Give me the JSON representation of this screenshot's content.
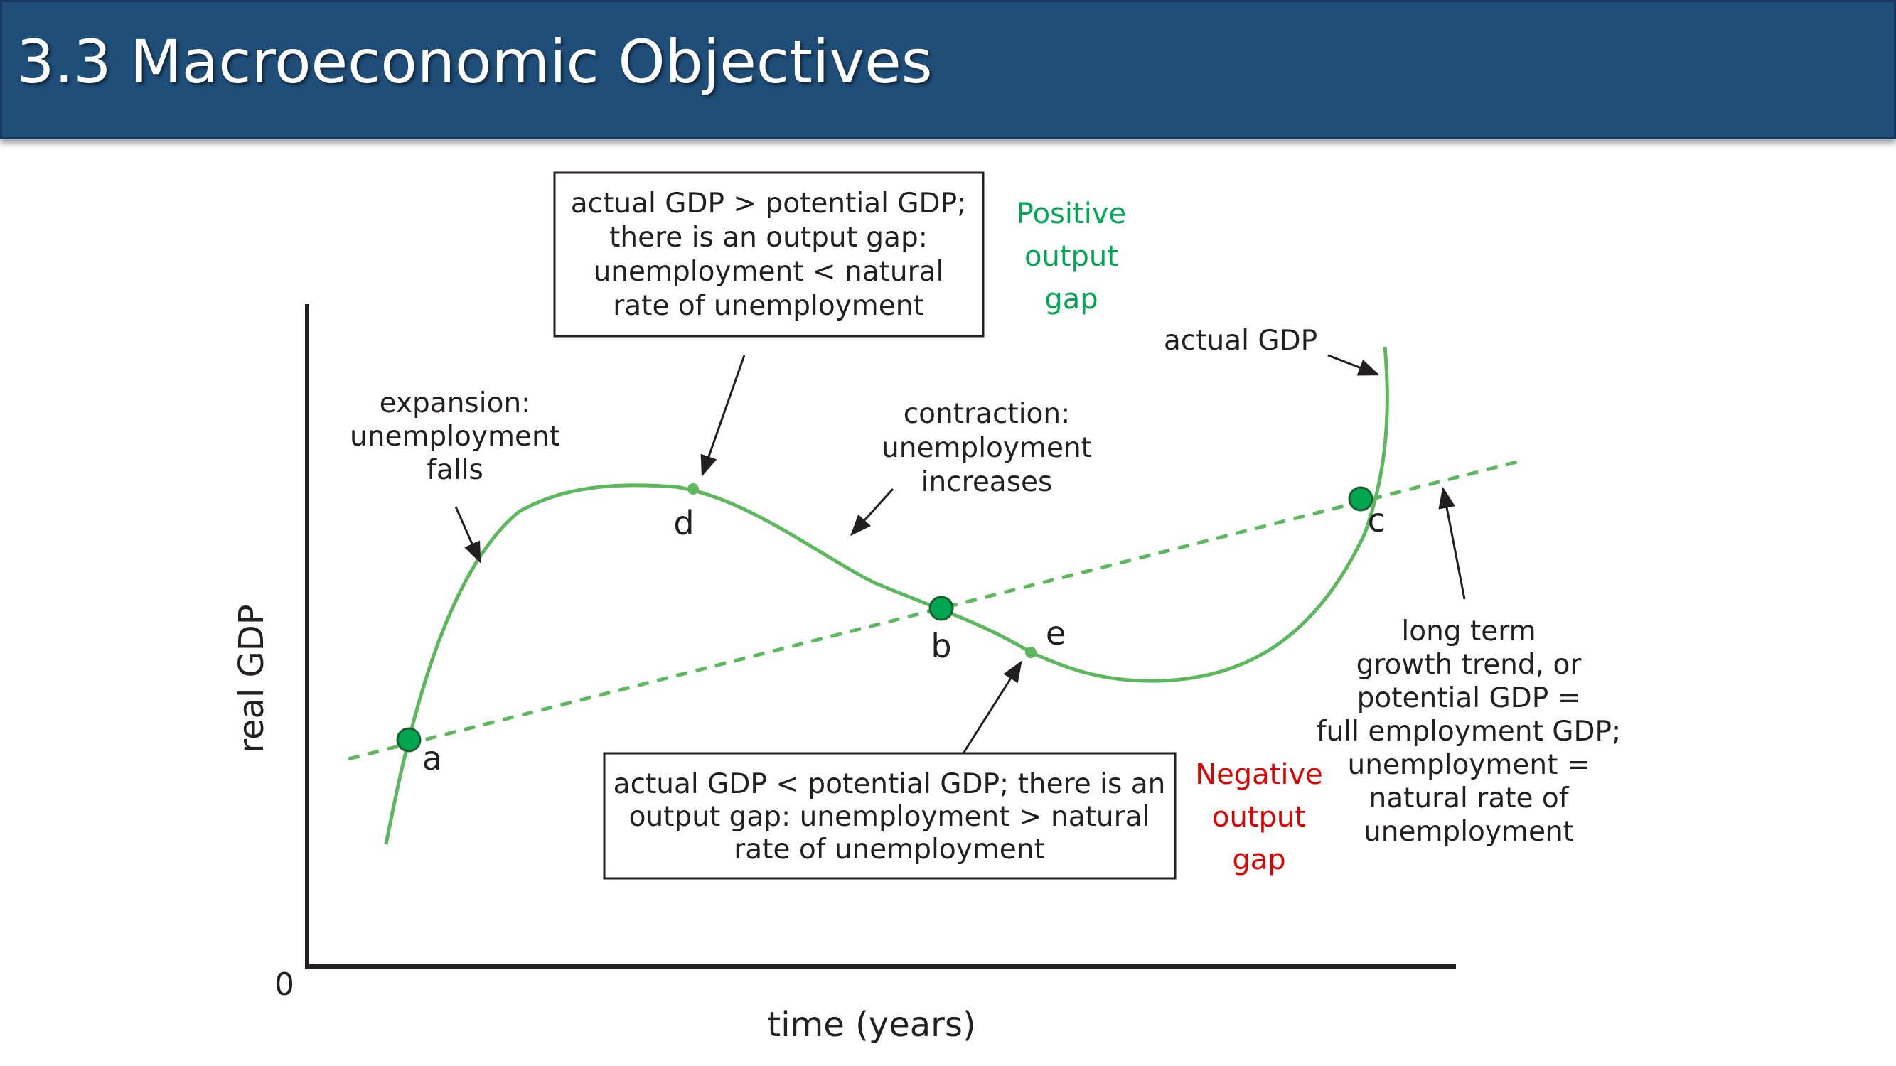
{
  "slide": {
    "title": "3.3 Macroeconomic Objectives"
  },
  "axes": {
    "y_label": "real GDP",
    "x_label": "time (years)",
    "origin": "0"
  },
  "points": {
    "a": "a",
    "b": "b",
    "c": "c",
    "d": "d",
    "e": "e"
  },
  "labels": {
    "actual_gdp": "actual GDP",
    "expansion": [
      "expansion:",
      "unemployment",
      "falls"
    ],
    "contraction": [
      "contraction:",
      "unemployment",
      "increases"
    ],
    "trend": [
      "long term",
      "growth trend, or",
      "potential GDP =",
      "full employment GDP;",
      "unemployment =",
      "natural rate of",
      "unemployment"
    ],
    "positive_gap": [
      "Positive",
      "output",
      "gap"
    ],
    "negative_gap": [
      "Negative",
      "output",
      "gap"
    ]
  },
  "boxes": {
    "top": [
      "actual GDP > potential GDP;",
      "there is an output gap:",
      "unemployment < natural",
      "rate of unemployment"
    ],
    "bottom": [
      "actual GDP < potential GDP; there is an",
      "output gap: unemployment > natural",
      "rate of unemployment"
    ]
  },
  "colors": {
    "banner": "#1f4e79",
    "curve": "#5cb85c",
    "point": "#00a651",
    "positive": "#00a651",
    "negative": "#e00000",
    "ink": "#231f20"
  }
}
